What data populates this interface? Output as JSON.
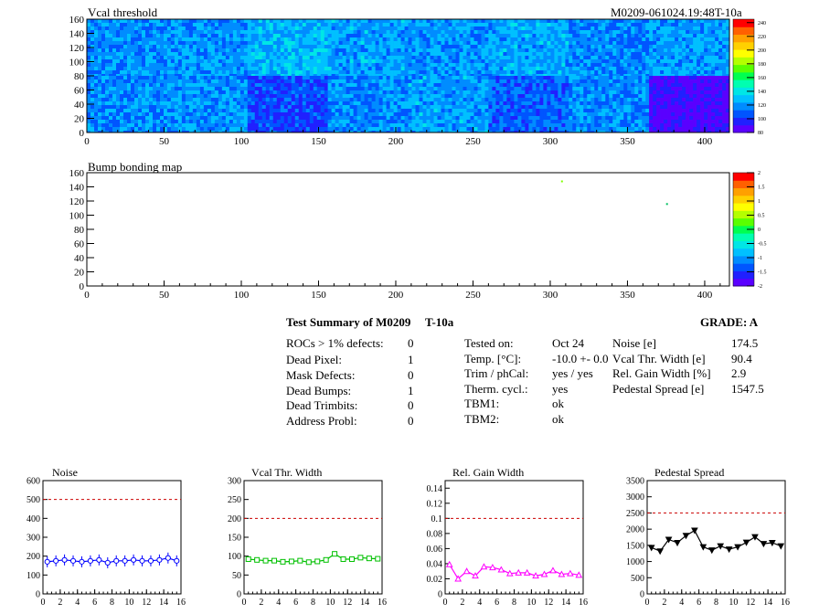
{
  "header": {
    "map1_title": "Vcal threshold",
    "module_id": "M0209-061024.19:48T-10a",
    "map2_title": "Bump bonding map"
  },
  "summary": {
    "title": "Test Summary of M0209",
    "temp_tag": "T-10a",
    "grade": "GRADE:  A",
    "col1": [
      {
        "label": "ROCs > 1% defects:",
        "value": "0"
      },
      {
        "label": "Dead Pixel:",
        "value": "1"
      },
      {
        "label": "Mask Defects:",
        "value": "0"
      },
      {
        "label": "Dead Bumps:",
        "value": "1"
      },
      {
        "label": "Dead Trimbits:",
        "value": "0"
      },
      {
        "label": "Address Probl:",
        "value": "0"
      }
    ],
    "col2": [
      {
        "label": "Tested on:",
        "value": "Oct 24"
      },
      {
        "label": "Temp. [°C]:",
        "value": "-10.0 +- 0.0"
      },
      {
        "label": "Trim / phCal:",
        "value": "yes / yes"
      },
      {
        "label": "Therm. cycl.:",
        "value": "yes"
      },
      {
        "label": "TBM1:",
        "value": "ok"
      },
      {
        "label": "TBM2:",
        "value": "ok"
      }
    ],
    "col3": [
      {
        "label": "Noise [e]",
        "value": "174.5"
      },
      {
        "label": "Vcal Thr. Width [e]",
        "value": "90.4"
      },
      {
        "label": "Rel. Gain Width [%]",
        "value": "2.9"
      },
      {
        "label": "Pedestal Spread [e]",
        "value": "1547.5"
      }
    ]
  },
  "chart_data": [
    {
      "type": "heatmap",
      "title": "Vcal threshold",
      "xlim": [
        0,
        416
      ],
      "ylim": [
        0,
        160
      ],
      "xticks": [
        "0",
        "50",
        "100",
        "150",
        "200",
        "250",
        "300",
        "350",
        "400"
      ],
      "yticks": [
        "0",
        "20",
        "40",
        "60",
        "80",
        "100",
        "120",
        "140",
        "160"
      ],
      "roc_columns": 8,
      "roc_rows": 2,
      "roc_mean_levels": [
        [
          118,
          120,
          128,
          123,
          120,
          124,
          116,
          122
        ],
        [
          118,
          120,
          104,
          118,
          123,
          110,
          118,
          88
        ]
      ],
      "palette": [
        "#5a00ff",
        "#2020ff",
        "#0055ff",
        "#008cff",
        "#00c0ff",
        "#00e6e6",
        "#00ffb0",
        "#00ff50",
        "#5aff00",
        "#b4ff00",
        "#ffff00",
        "#ffd000",
        "#ffa000",
        "#ff6000",
        "#ff0000"
      ],
      "zlim": [
        80,
        245
      ],
      "zticks": [
        "80",
        "100",
        "120",
        "140",
        "160",
        "180",
        "200",
        "220",
        "240"
      ],
      "colors": {
        "cold": "#5a00ff",
        "hot": "#ff0000",
        "background": "#2f6bff"
      }
    },
    {
      "type": "heatmap",
      "title": "Bump bonding map",
      "xlim": [
        0,
        416
      ],
      "ylim": [
        0,
        160
      ],
      "xticks": [
        "0",
        "50",
        "100",
        "150",
        "200",
        "250",
        "300",
        "350",
        "400"
      ],
      "yticks": [
        "0",
        "20",
        "40",
        "60",
        "80",
        "100",
        "120",
        "140",
        "160"
      ],
      "zlim": [
        -2,
        2
      ],
      "zticks": [
        "-2",
        "-1.5",
        "-1",
        "-0.5",
        "0",
        "0.5",
        "1",
        "1.5",
        "2"
      ],
      "points": [
        {
          "x": 307,
          "y": 149,
          "color": "#7fff00"
        },
        {
          "x": 375,
          "y": 117,
          "color": "#00c060"
        }
      ]
    },
    {
      "type": "line",
      "title": "Noise",
      "xlim": [
        0,
        16
      ],
      "ylim": [
        0,
        600
      ],
      "xticks": [
        "0",
        "2",
        "4",
        "6",
        "8",
        "10",
        "12",
        "14",
        "16"
      ],
      "yticks": [
        "0",
        "100",
        "200",
        "300",
        "400",
        "500",
        "600"
      ],
      "limit": 500,
      "color": "#0000ff",
      "marker": "circle",
      "x": [
        0.5,
        1.5,
        2.5,
        3.5,
        4.5,
        5.5,
        6.5,
        7.5,
        8.5,
        9.5,
        10.5,
        11.5,
        12.5,
        13.5,
        14.5,
        15.5
      ],
      "y": [
        170,
        175,
        180,
        175,
        170,
        175,
        180,
        165,
        175,
        175,
        180,
        175,
        175,
        180,
        190,
        175
      ]
    },
    {
      "type": "line",
      "title": "Vcal Thr. Width",
      "xlim": [
        0,
        16
      ],
      "ylim": [
        0,
        300
      ],
      "xticks": [
        "0",
        "2",
        "4",
        "6",
        "8",
        "10",
        "12",
        "14",
        "16"
      ],
      "yticks": [
        "0",
        "50",
        "100",
        "150",
        "200",
        "250",
        "300"
      ],
      "limit": 200,
      "color": "#00c000",
      "marker": "square",
      "x": [
        0.5,
        1.5,
        2.5,
        3.5,
        4.5,
        5.5,
        6.5,
        7.5,
        8.5,
        9.5,
        10.5,
        11.5,
        12.5,
        13.5,
        14.5,
        15.5
      ],
      "y": [
        92,
        90,
        88,
        88,
        85,
        86,
        88,
        84,
        86,
        90,
        106,
        92,
        92,
        96,
        94,
        93
      ]
    },
    {
      "type": "line",
      "title": "Rel. Gain Width",
      "xlim": [
        0,
        16
      ],
      "ylim": [
        0,
        0.15
      ],
      "xticks": [
        "0",
        "2",
        "4",
        "6",
        "8",
        "10",
        "12",
        "14",
        "16"
      ],
      "yticks": [
        "0",
        "0.02",
        "0.04",
        "0.06",
        "0.08",
        "0.1",
        "0.12",
        "0.14"
      ],
      "limit": 0.1,
      "color": "#ff00ff",
      "marker": "triangle",
      "x": [
        0.5,
        1.5,
        2.5,
        3.5,
        4.5,
        5.5,
        6.5,
        7.5,
        8.5,
        9.5,
        10.5,
        11.5,
        12.5,
        13.5,
        14.5,
        15.5
      ],
      "y": [
        0.039,
        0.02,
        0.03,
        0.024,
        0.036,
        0.035,
        0.032,
        0.027,
        0.028,
        0.028,
        0.024,
        0.026,
        0.031,
        0.026,
        0.027,
        0.025
      ]
    },
    {
      "type": "line",
      "title": "Pedestal Spread",
      "xlim": [
        0,
        16
      ],
      "ylim": [
        0,
        3500
      ],
      "xticks": [
        "0",
        "2",
        "4",
        "6",
        "8",
        "10",
        "12",
        "14",
        "16"
      ],
      "yticks": [
        "0",
        "500",
        "1000",
        "1500",
        "2000",
        "2500",
        "3000",
        "3500"
      ],
      "limit": 2500,
      "color": "#000000",
      "marker": "triangle-down",
      "x": [
        0.5,
        1.5,
        2.5,
        3.5,
        4.5,
        5.5,
        6.5,
        7.5,
        8.5,
        9.5,
        10.5,
        11.5,
        12.5,
        13.5,
        14.5,
        15.5
      ],
      "y": [
        1430,
        1320,
        1680,
        1580,
        1800,
        1960,
        1450,
        1350,
        1480,
        1380,
        1450,
        1590,
        1760,
        1550,
        1580,
        1480
      ]
    }
  ]
}
